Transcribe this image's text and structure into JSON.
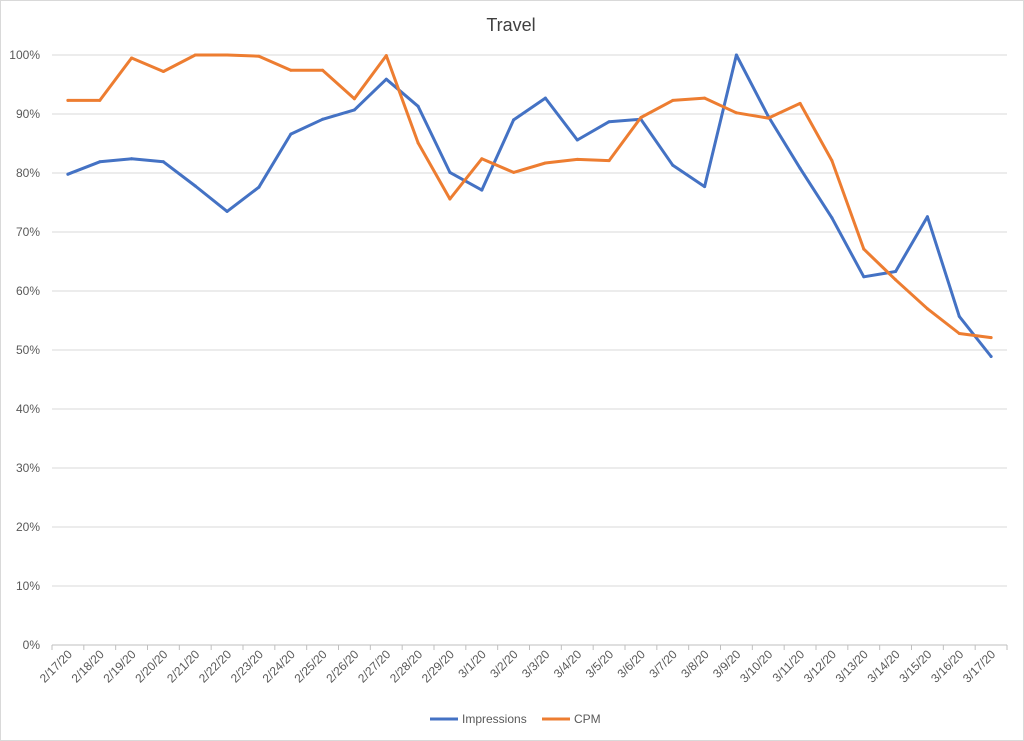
{
  "chart_data": {
    "type": "line",
    "title": "Travel",
    "xlabel": "",
    "ylabel": "",
    "categories": [
      "2/17/20",
      "2/18/20",
      "2/19/20",
      "2/20/20",
      "2/21/20",
      "2/22/20",
      "2/23/20",
      "2/24/20",
      "2/25/20",
      "2/26/20",
      "2/27/20",
      "2/28/20",
      "2/29/20",
      "3/1/20",
      "3/2/20",
      "3/3/20",
      "3/4/20",
      "3/5/20",
      "3/6/20",
      "3/7/20",
      "3/8/20",
      "3/9/20",
      "3/10/20",
      "3/11/20",
      "3/12/20",
      "3/13/20",
      "3/14/20",
      "3/15/20",
      "3/16/20",
      "3/17/20"
    ],
    "y_ticks": [
      "0%",
      "10%",
      "20%",
      "30%",
      "40%",
      "50%",
      "60%",
      "70%",
      "80%",
      "90%",
      "100%"
    ],
    "ylim": [
      0,
      100
    ],
    "y_unit": "%",
    "grid": true,
    "legend_position": "bottom",
    "series": [
      {
        "name": "Impressions",
        "color": "#4472c4",
        "values": [
          79.8,
          81.9,
          82.4,
          81.9,
          77.8,
          73.5,
          77.6,
          86.6,
          89.1,
          90.7,
          95.9,
          91.3,
          80.1,
          77.1,
          89.0,
          92.7,
          85.6,
          88.7,
          89.1,
          81.3,
          77.7,
          100.0,
          89.6,
          80.8,
          72.4,
          62.4,
          63.3,
          72.6,
          55.7,
          48.9
        ]
      },
      {
        "name": "CPM",
        "color": "#ed7d31",
        "values": [
          92.3,
          92.3,
          99.5,
          97.2,
          100.0,
          100.0,
          99.8,
          97.4,
          97.4,
          92.6,
          99.9,
          85.1,
          75.6,
          82.4,
          80.1,
          81.7,
          82.3,
          82.1,
          89.4,
          92.3,
          92.7,
          90.2,
          89.3,
          91.8,
          82.1,
          67.1,
          61.9,
          57.0,
          52.8,
          52.1
        ]
      }
    ]
  }
}
